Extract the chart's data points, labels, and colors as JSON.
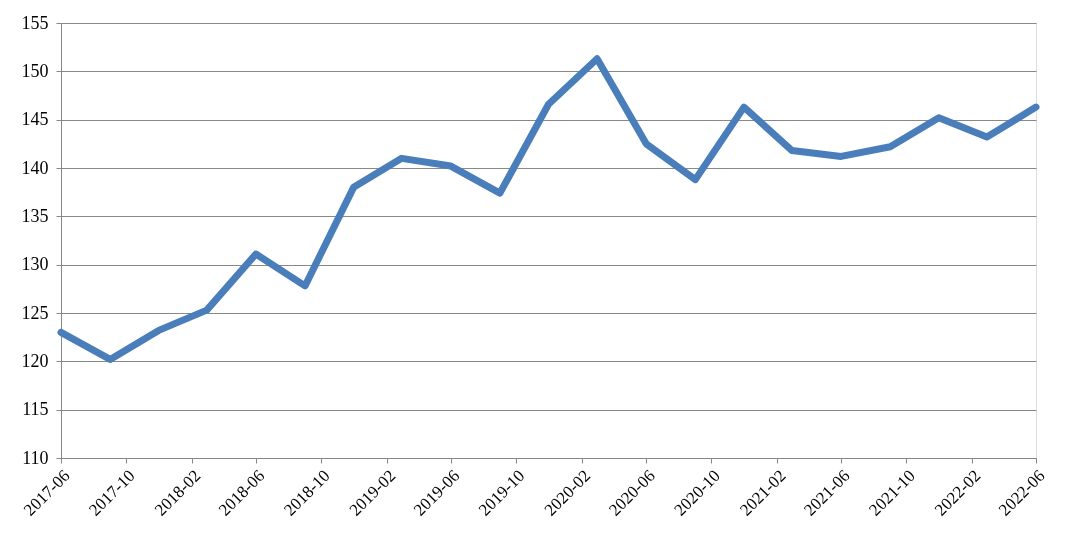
{
  "chart_data": {
    "type": "line",
    "x": [
      "2017-06",
      "2017-09",
      "2017-12",
      "2018-03",
      "2018-06",
      "2018-09",
      "2018-12",
      "2019-03",
      "2019-06",
      "2019-09",
      "2019-12",
      "2020-03",
      "2020-06",
      "2020-09",
      "2020-12",
      "2021-03",
      "2021-06",
      "2021-09",
      "2021-12",
      "2022-03",
      "2022-06"
    ],
    "series": [
      {
        "color": "#4a7ebb",
        "values": [
          123.0,
          120.2,
          123.2,
          125.3,
          131.1,
          127.8,
          138.0,
          141.0,
          140.2,
          137.4,
          146.6,
          151.3,
          142.5,
          138.8,
          146.3,
          141.8,
          141.2,
          142.2,
          145.2,
          143.2,
          146.3
        ]
      }
    ],
    "xlim": [
      "2017-06",
      "2022-06"
    ],
    "xticks": [
      "2017-06",
      "2017-10",
      "2018-02",
      "2018-06",
      "2018-10",
      "2019-02",
      "2019-06",
      "2019-10",
      "2020-02",
      "2020-06",
      "2020-10",
      "2021-02",
      "2021-06",
      "2021-10",
      "2022-02",
      "2022-06"
    ],
    "ylim": [
      110,
      155
    ],
    "yticks": [
      110,
      115,
      120,
      125,
      130,
      135,
      140,
      145,
      150,
      155
    ],
    "grid": "y",
    "marker": "none",
    "line_style": "solid"
  }
}
